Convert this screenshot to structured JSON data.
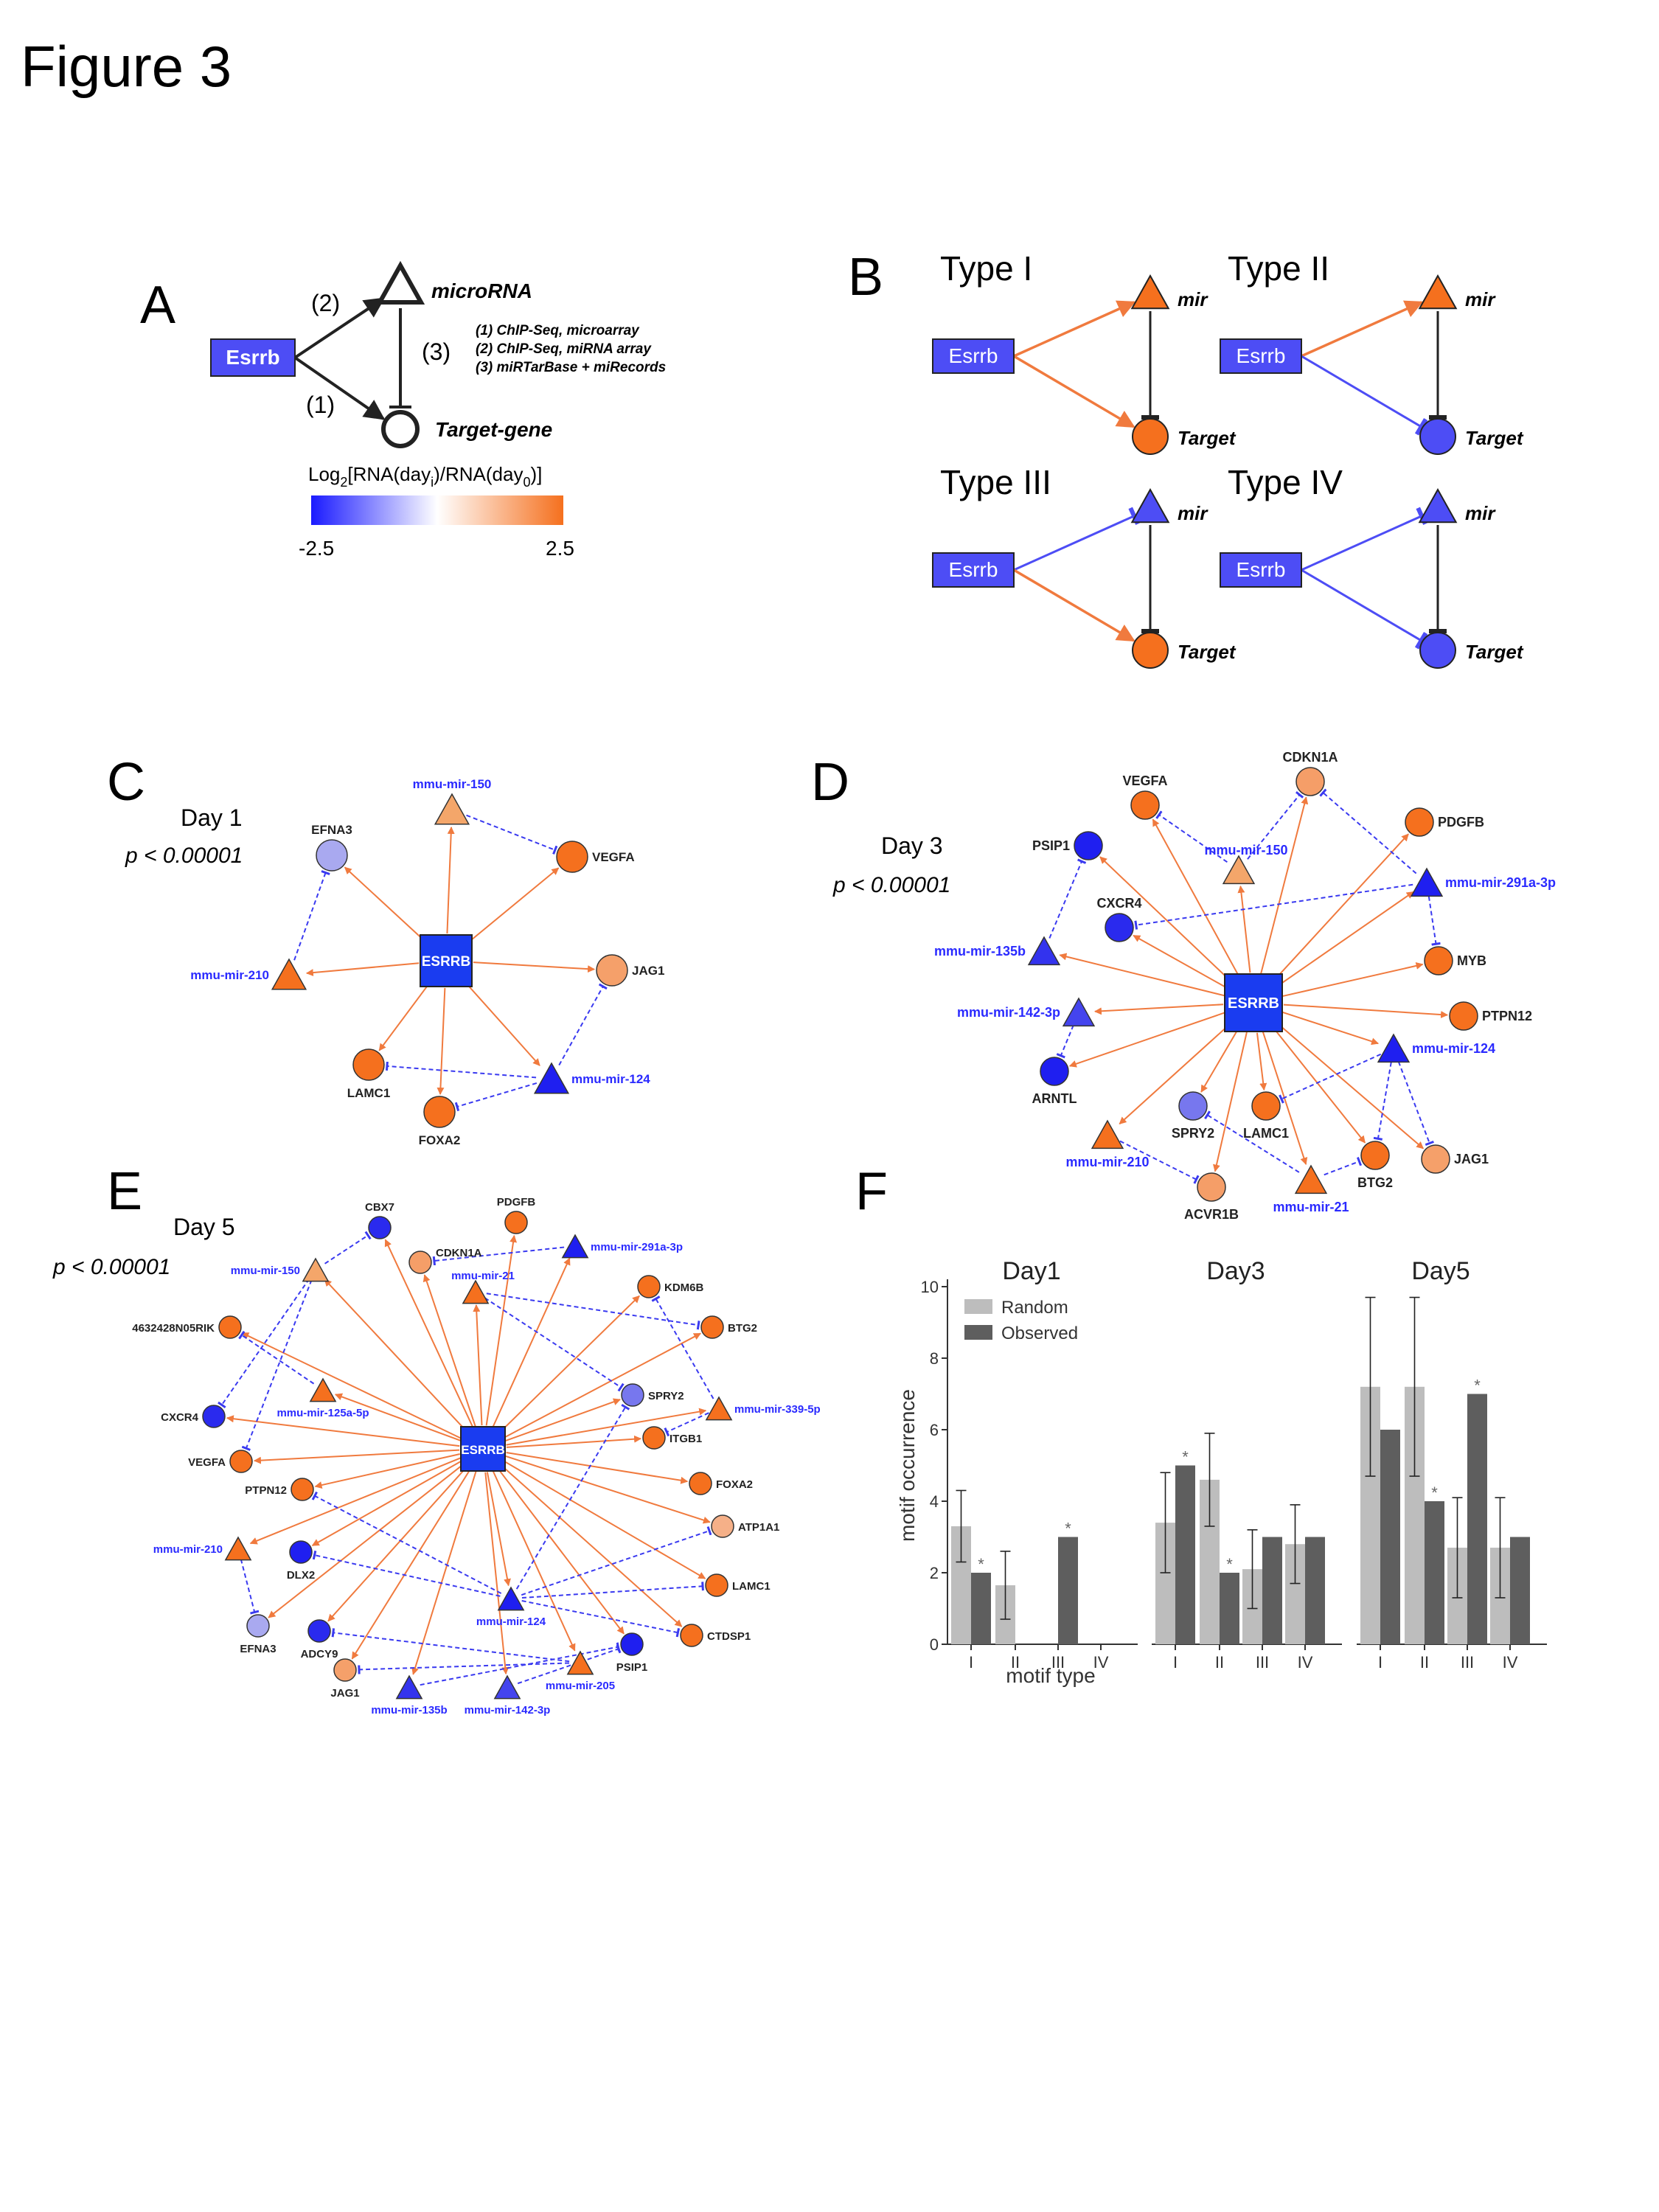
{
  "figure_title": "Figure 3",
  "panel_labels": {
    "a": "A",
    "b": "B",
    "c": "C",
    "d": "D",
    "e": "E",
    "f": "F"
  },
  "panel_a": {
    "node_tf": "Esrrb",
    "node_mir": "microRNA",
    "node_target": "Target-gene",
    "edge_labels": [
      "(2)",
      "(3)",
      "(1)"
    ],
    "legend_lines": [
      "(1) ChIP-Seq, microarray",
      "(2) ChIP-Seq, miRNA array",
      "(3) miRTarBase + miRecords"
    ],
    "colorbar_title_prefix": "Log",
    "colorbar_title_sub": "2",
    "colorbar_title_mid1": "[RNA(day",
    "colorbar_title_sub_i": "i",
    "colorbar_title_mid2": ")/RNA(day",
    "colorbar_title_sub_0": "0",
    "colorbar_title_end": ")]",
    "colorbar_min": "-2.5",
    "colorbar_max": "2.5",
    "colors": {
      "blue": "#1a1aff",
      "white": "#ffffff",
      "orange": "#f5701e"
    }
  },
  "panel_b": {
    "types": [
      {
        "title": "Type I",
        "tf": "Esrrb",
        "mir": "mir",
        "target": "Target",
        "tf_to_mir": "activate",
        "tf_to_target": "activate",
        "mir_color": "#f5701e",
        "target_color": "#f5701e"
      },
      {
        "title": "Type II",
        "tf": "Esrrb",
        "mir": "mir",
        "target": "Target",
        "tf_to_mir": "activate",
        "tf_to_target": "repress",
        "mir_color": "#f5701e",
        "target_color": "#4d4df5"
      },
      {
        "title": "Type III",
        "tf": "Esrrb",
        "mir": "mir",
        "target": "Target",
        "tf_to_mir": "repress",
        "tf_to_target": "activate",
        "mir_color": "#4d4df5",
        "target_color": "#f5701e"
      },
      {
        "title": "Type IV",
        "tf": "Esrrb",
        "mir": "mir",
        "target": "Target",
        "tf_to_mir": "repress",
        "tf_to_target": "repress",
        "mir_color": "#4d4df5",
        "target_color": "#4d4df5"
      }
    ]
  },
  "panel_c": {
    "day": "Day 1",
    "pvalue": "p < 0.00001",
    "hub": "ESRRB",
    "nodes": [
      {
        "id": "mmu-mir-150",
        "shape": "triangle",
        "color": "#f4a66a",
        "label_color": "#2a2aff"
      },
      {
        "id": "EFNA3",
        "shape": "circle",
        "color": "#a9a9f0",
        "label_color": "#222222"
      },
      {
        "id": "VEGFA",
        "shape": "circle",
        "color": "#f5701e",
        "label_color": "#222222"
      },
      {
        "id": "mmu-mir-210",
        "shape": "triangle",
        "color": "#f5701e",
        "label_color": "#2a2aff"
      },
      {
        "id": "JAG1",
        "shape": "circle",
        "color": "#f5a06a",
        "label_color": "#222222"
      },
      {
        "id": "LAMC1",
        "shape": "circle",
        "color": "#f5701e",
        "label_color": "#222222"
      },
      {
        "id": "mmu-mir-124",
        "shape": "triangle",
        "color": "#1f1ff0",
        "label_color": "#2a2aff"
      },
      {
        "id": "FOXA2",
        "shape": "circle",
        "color": "#f5701e",
        "label_color": "#222222"
      }
    ]
  },
  "panel_d": {
    "day": "Day 3",
    "pvalue": "p < 0.00001",
    "hub": "ESRRB",
    "nodes": [
      {
        "id": "CDKN1A",
        "shape": "circle",
        "color": "#f59e68",
        "label_color": "#222222"
      },
      {
        "id": "VEGFA",
        "shape": "circle",
        "color": "#f5701e",
        "label_color": "#222222"
      },
      {
        "id": "PDGFB",
        "shape": "circle",
        "color": "#f5701e",
        "label_color": "#222222"
      },
      {
        "id": "PSIP1",
        "shape": "circle",
        "color": "#1f1ff0",
        "label_color": "#222222"
      },
      {
        "id": "mmu-mir-150",
        "shape": "triangle",
        "color": "#f4a66a",
        "label_color": "#2a2aff"
      },
      {
        "id": "mmu-mir-291a-3p",
        "shape": "triangle",
        "color": "#1f1ff0",
        "label_color": "#2a2aff"
      },
      {
        "id": "CXCR4",
        "shape": "circle",
        "color": "#2a2aee",
        "label_color": "#222222"
      },
      {
        "id": "mmu-mir-135b",
        "shape": "triangle",
        "color": "#3333ee",
        "label_color": "#2a2aff"
      },
      {
        "id": "MYB",
        "shape": "circle",
        "color": "#f5701e",
        "label_color": "#222222"
      },
      {
        "id": "mmu-mir-142-3p",
        "shape": "triangle",
        "color": "#4444ee",
        "label_color": "#2a2aff"
      },
      {
        "id": "PTPN12",
        "shape": "circle",
        "color": "#f5701e",
        "label_color": "#222222"
      },
      {
        "id": "mmu-mir-124",
        "shape": "triangle",
        "color": "#1f1ff0",
        "label_color": "#2a2aff"
      },
      {
        "id": "ARNTL",
        "shape": "circle",
        "color": "#1f1ff0",
        "label_color": "#222222"
      },
      {
        "id": "SPRY2",
        "shape": "circle",
        "color": "#7777ee",
        "label_color": "#222222"
      },
      {
        "id": "LAMC1",
        "shape": "circle",
        "color": "#f5701e",
        "label_color": "#222222"
      },
      {
        "id": "mmu-mir-210",
        "shape": "triangle",
        "color": "#f5701e",
        "label_color": "#2a2aff"
      },
      {
        "id": "BTG2",
        "shape": "circle",
        "color": "#f5701e",
        "label_color": "#222222"
      },
      {
        "id": "JAG1",
        "shape": "circle",
        "color": "#f5a06a",
        "label_color": "#222222"
      },
      {
        "id": "ACVR1B",
        "shape": "circle",
        "color": "#f59e68",
        "label_color": "#222222"
      },
      {
        "id": "mmu-mir-21",
        "shape": "triangle",
        "color": "#f5701e",
        "label_color": "#2a2aff"
      }
    ]
  },
  "panel_e": {
    "day": "Day 5",
    "pvalue": "p < 0.00001",
    "hub": "ESRRB",
    "nodes": [
      {
        "id": "CBX7",
        "shape": "circle",
        "color": "#2a2aee",
        "label_color": "#222222"
      },
      {
        "id": "PDGFB",
        "shape": "circle",
        "color": "#f5701e",
        "label_color": "#222222"
      },
      {
        "id": "mmu-mir-291a-3p",
        "shape": "triangle",
        "color": "#1f1ff0",
        "label_color": "#2a2aff"
      },
      {
        "id": "mmu-mir-150",
        "shape": "triangle",
        "color": "#f4a66a",
        "label_color": "#2a2aff"
      },
      {
        "id": "CDKN1A",
        "shape": "circle",
        "color": "#f59e68",
        "label_color": "#222222"
      },
      {
        "id": "mmu-mir-21",
        "shape": "triangle",
        "color": "#f5701e",
        "label_color": "#2a2aff"
      },
      {
        "id": "KDM6B",
        "shape": "circle",
        "color": "#f5701e",
        "label_color": "#222222"
      },
      {
        "id": "4632428N05RIK",
        "shape": "circle",
        "color": "#f5701e",
        "label_color": "#222222"
      },
      {
        "id": "BTG2",
        "shape": "circle",
        "color": "#f5701e",
        "label_color": "#222222"
      },
      {
        "id": "mmu-mir-125a-5p",
        "shape": "triangle",
        "color": "#f5701e",
        "label_color": "#2a2aff"
      },
      {
        "id": "SPRY2",
        "shape": "circle",
        "color": "#7777ee",
        "label_color": "#222222"
      },
      {
        "id": "mmu-mir-339-5p",
        "shape": "triangle",
        "color": "#f5701e",
        "label_color": "#2a2aff"
      },
      {
        "id": "CXCR4",
        "shape": "circle",
        "color": "#2a2aee",
        "label_color": "#222222"
      },
      {
        "id": "ITGB1",
        "shape": "circle",
        "color": "#f5701e",
        "label_color": "#222222"
      },
      {
        "id": "VEGFA",
        "shape": "circle",
        "color": "#f5701e",
        "label_color": "#222222"
      },
      {
        "id": "FOXA2",
        "shape": "circle",
        "color": "#f5701e",
        "label_color": "#222222"
      },
      {
        "id": "PTPN12",
        "shape": "circle",
        "color": "#f5701e",
        "label_color": "#222222"
      },
      {
        "id": "ATP1A1",
        "shape": "circle",
        "color": "#f5b088",
        "label_color": "#222222"
      },
      {
        "id": "mmu-mir-210",
        "shape": "triangle",
        "color": "#f5701e",
        "label_color": "#2a2aff"
      },
      {
        "id": "DLX2",
        "shape": "circle",
        "color": "#1f1ff0",
        "label_color": "#222222"
      },
      {
        "id": "LAMC1",
        "shape": "circle",
        "color": "#f5701e",
        "label_color": "#222222"
      },
      {
        "id": "mmu-mir-124",
        "shape": "triangle",
        "color": "#1f1ff0",
        "label_color": "#2a2aff"
      },
      {
        "id": "CTDSP1",
        "shape": "circle",
        "color": "#f5701e",
        "label_color": "#222222"
      },
      {
        "id": "EFNA3",
        "shape": "circle",
        "color": "#a9a9f0",
        "label_color": "#222222"
      },
      {
        "id": "ADCY9",
        "shape": "circle",
        "color": "#2a2aee",
        "label_color": "#222222"
      },
      {
        "id": "PSIP1",
        "shape": "circle",
        "color": "#1f1ff0",
        "label_color": "#222222"
      },
      {
        "id": "JAG1",
        "shape": "circle",
        "color": "#f5a06a",
        "label_color": "#222222"
      },
      {
        "id": "mmu-mir-205",
        "shape": "triangle",
        "color": "#f5701e",
        "label_color": "#2a2aff"
      },
      {
        "id": "mmu-mir-135b",
        "shape": "triangle",
        "color": "#3333ee",
        "label_color": "#2a2aff"
      },
      {
        "id": "mmu-mir-142-3p",
        "shape": "triangle",
        "color": "#4444ee",
        "label_color": "#2a2aff"
      }
    ]
  },
  "chart_data": {
    "type": "bar",
    "panels": [
      "Day1",
      "Day3",
      "Day5"
    ],
    "categories": [
      "I",
      "II",
      "III",
      "IV"
    ],
    "series": [
      {
        "name": "Random",
        "color": "#bdbdbd",
        "values": [
          [
            3.3,
            1.65,
            0,
            0
          ],
          [
            3.4,
            4.6,
            2.1,
            2.8
          ],
          [
            7.2,
            7.2,
            2.7,
            2.7
          ]
        ],
        "error": [
          [
            1.0,
            0.95,
            0,
            0
          ],
          [
            1.4,
            1.3,
            1.1,
            1.1
          ],
          [
            2.5,
            2.5,
            1.4,
            1.4
          ]
        ]
      },
      {
        "name": "Observed",
        "color": "#5e5e5e",
        "values": [
          [
            2,
            0,
            3,
            0
          ],
          [
            5,
            2,
            3,
            3
          ],
          [
            6,
            4,
            7,
            3
          ]
        ]
      }
    ],
    "significant_marks": [
      [
        0,
        0
      ],
      [
        0,
        2
      ],
      [
        1,
        0
      ],
      [
        1,
        1
      ],
      [
        2,
        1
      ],
      [
        2,
        2
      ]
    ],
    "significance_symbol": "*",
    "ylabel": "motif occurrence",
    "xlabel": "motif type",
    "ylim": [
      0,
      10
    ],
    "yticks": [
      "0",
      "2",
      "4",
      "6",
      "8",
      "10"
    ],
    "legend": [
      "Random",
      "Observed"
    ],
    "legend_position": "top-left"
  }
}
